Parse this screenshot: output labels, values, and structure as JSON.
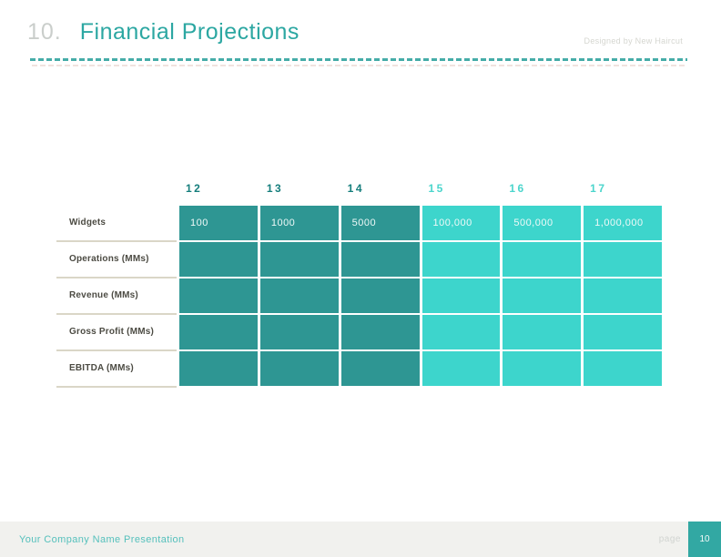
{
  "slide": {
    "title_number": "10.",
    "title": "Financial Projections",
    "credit": "Designed by New Haircut",
    "footer": "Your Company Name Presentation",
    "page_label": "page",
    "page_number": "10"
  },
  "table": {
    "columns": [
      "12",
      "13",
      "14",
      "15",
      "16",
      "17"
    ],
    "row_labels": [
      "Widgets",
      "Operations (MMs)",
      "Revenue (MMs)",
      "Gross Profit (MMs)",
      "EBITDA (MMs)"
    ],
    "rows": [
      [
        "100",
        "1000",
        "5000",
        "100,000",
        "500,000",
        "1,000,000"
      ],
      [
        "",
        "",
        "",
        "",
        "",
        ""
      ],
      [
        "",
        "",
        "",
        "",
        "",
        ""
      ],
      [
        "",
        "",
        "",
        "",
        "",
        ""
      ],
      [
        "",
        "",
        "",
        "",
        "",
        ""
      ]
    ]
  },
  "colors": {
    "accent_teal": "#2ca7a2",
    "dark_cell": "#2e9693",
    "light_cell": "#3dd5cc",
    "dark_header_text": "#157e7c",
    "light_header_text": "#4bd5cc",
    "row_label_text": "#4c4b43",
    "separator_line": "#dad6c7",
    "footer_background": "#f1f1ee",
    "page_box": "#32a8a3",
    "title_number_gray": "#cacecb",
    "credit_gray": "#d5d6d0"
  }
}
